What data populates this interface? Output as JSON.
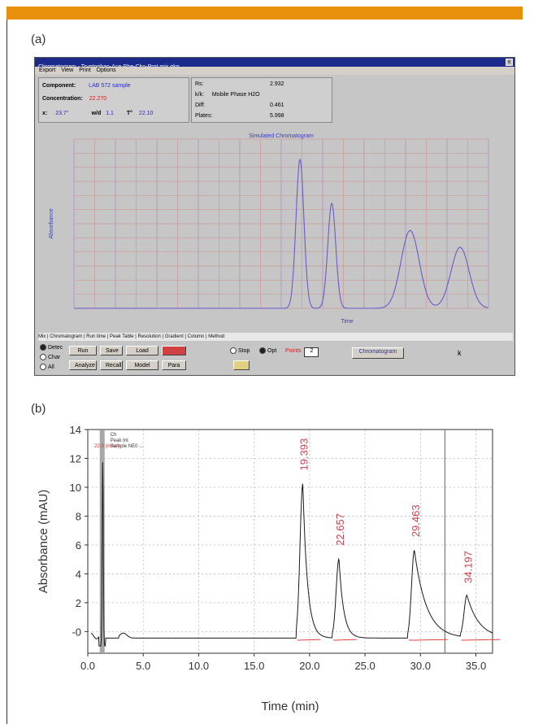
{
  "panel_a": {
    "label": "(a)",
    "window_title": "Chromatogram - Tryptophan-Ace-Phe-Cho-Prot mix.pkg",
    "close_glyph": "x",
    "menu": [
      "Export",
      "View",
      "Print",
      "Options"
    ],
    "info": {
      "component_label": "Component:",
      "component_value": "LAB 572 sample",
      "concentration_label": "Concentration:",
      "concentration_value": "22.270",
      "x_label": "x:",
      "x_value": "23.7°",
      "mid_label": "w/d",
      "mid_value": "1.1",
      "t_label": "T°",
      "t_value": "22.10",
      "right_rows": [
        {
          "label": "Rs:",
          "value": "2.932"
        },
        {
          "label": "k/k:",
          "value": "Mobile Phase H2O"
        },
        {
          "label": "Diff:",
          "value": "0.461"
        },
        {
          "label": "Plates:",
          "value": "5.998"
        }
      ]
    },
    "plot_title": "Simulated Chromatogram",
    "plot_ylabel": "Absorbance",
    "plot_xlabel": "Time",
    "tabs_text": "Mix | Chromatogram | Run time | Peak Table | Resolution | Gradient | Column | Method",
    "controls": {
      "radio_labels": [
        "Detec",
        "Char",
        "All"
      ],
      "buttons": [
        "Run",
        "Save",
        "Load",
        "Analyze",
        "Recall",
        "Model",
        "Para"
      ],
      "stop_label": "Stop",
      "opt_label": "Opt",
      "points_label": "Points",
      "points_value": "2",
      "status_label": "Chromatogram",
      "cursor_glyph": "k"
    }
  },
  "chart_data": [
    {
      "type": "line",
      "title": "Simulated Chromatogram",
      "xlabel": "Time",
      "ylabel": "Absorbance",
      "xlim": [
        0,
        36.5
      ],
      "ylim": [
        0,
        1
      ],
      "grid": true,
      "series": [
        {
          "color": "#6a5acd",
          "peaks": [
            {
              "rt": 19.9,
              "height": 0.88,
              "width": 0.35
            },
            {
              "rt": 22.7,
              "height": 0.62,
              "width": 0.35
            },
            {
              "rt": 29.6,
              "height": 0.46,
              "width": 0.8
            },
            {
              "rt": 34.0,
              "height": 0.36,
              "width": 0.8
            }
          ]
        }
      ]
    },
    {
      "type": "line",
      "label": "(b)",
      "xlabel": "Time (min)",
      "ylabel": "Absorbance (mAU)",
      "xlim": [
        0,
        36.5
      ],
      "ylim": [
        -1.5,
        14
      ],
      "xticks": [
        "0.0",
        "5.0",
        "10.0",
        "15.0",
        "20.0",
        "25.0",
        "30.0",
        "35.0"
      ],
      "yticks": [
        "-0",
        "2",
        "4",
        "6",
        "8",
        "10",
        "12",
        "14"
      ],
      "grid": true,
      "trace_color": "#1a1a1a",
      "baseline_color": "#e04040",
      "peaks": [
        {
          "rt": 19.39,
          "height": 10.7,
          "label": "19.393"
        },
        {
          "rt": 22.65,
          "height": 5.5,
          "label": "22.657"
        },
        {
          "rt": 29.45,
          "height": 6.1,
          "label": "29.463"
        },
        {
          "rt": 34.19,
          "height": 2.9,
          "label": "34.197"
        }
      ],
      "solvent_front_time": 1.3,
      "cutoff_line_time": 32.2,
      "inset_legend": [
        "Ch",
        "Peak Int",
        "Sample NE0 ..."
      ],
      "inset_red_text": "22.0 (mAU)"
    }
  ]
}
